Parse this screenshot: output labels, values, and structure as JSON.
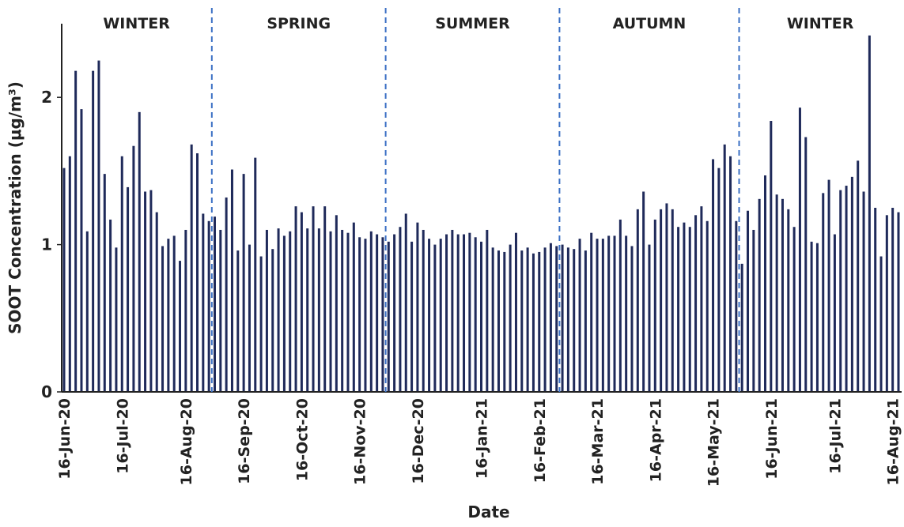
{
  "chart_data": {
    "type": "bar",
    "y_label": "SOOT Concentration (μg/m³)",
    "x_label": "Date",
    "color": "#1f2a5a",
    "ylim": [
      0,
      2.5
    ],
    "yticks": [
      0,
      1,
      2
    ],
    "seasons": [
      {
        "name": "WINTER",
        "first": 0,
        "last": 25
      },
      {
        "name": "SPRING",
        "first": 26,
        "last": 55
      },
      {
        "name": "SUMMER",
        "first": 56,
        "last": 85
      },
      {
        "name": "AUTUMN",
        "first": 86,
        "last": 116
      },
      {
        "name": "WINTER",
        "first": 117,
        "last": 144
      }
    ],
    "categories": [
      "16-Jun-20",
      null,
      null,
      null,
      null,
      null,
      null,
      null,
      null,
      null,
      "16-Jul-20",
      null,
      null,
      null,
      null,
      null,
      null,
      null,
      null,
      null,
      null,
      "16-Aug-20",
      null,
      null,
      null,
      null,
      null,
      null,
      null,
      null,
      null,
      "16-Sep-20",
      null,
      null,
      null,
      null,
      null,
      null,
      null,
      null,
      null,
      "16-Oct-20",
      null,
      null,
      null,
      null,
      null,
      null,
      null,
      null,
      null,
      "16-Nov-20",
      null,
      null,
      null,
      null,
      null,
      null,
      null,
      null,
      null,
      "16-Dec-20",
      null,
      null,
      null,
      null,
      null,
      null,
      null,
      null,
      null,
      null,
      "16-Jan-21",
      null,
      null,
      null,
      null,
      null,
      null,
      null,
      null,
      null,
      "16-Feb-21",
      null,
      null,
      null,
      null,
      null,
      null,
      null,
      null,
      null,
      "16-Mar-21",
      null,
      null,
      null,
      null,
      null,
      null,
      null,
      null,
      null,
      "16-Apr-21",
      null,
      null,
      null,
      null,
      null,
      null,
      null,
      null,
      null,
      "16-May-21",
      null,
      null,
      null,
      null,
      null,
      null,
      null,
      null,
      null,
      "16-Jun-21",
      null,
      null,
      null,
      null,
      null,
      null,
      null,
      null,
      null,
      null,
      "16-Jul-21",
      null,
      null,
      null,
      null,
      null,
      null,
      null,
      null,
      null,
      "16-Aug-21",
      null
    ],
    "values": [
      1.52,
      1.6,
      2.18,
      1.92,
      1.09,
      2.18,
      2.25,
      1.48,
      1.17,
      0.98,
      1.6,
      1.39,
      1.67,
      1.9,
      1.36,
      1.37,
      1.22,
      0.99,
      1.04,
      1.06,
      0.89,
      1.1,
      1.68,
      1.62,
      1.21,
      1.16,
      1.19,
      1.1,
      1.32,
      1.51,
      0.96,
      1.48,
      1.0,
      1.59,
      0.92,
      1.1,
      0.97,
      1.11,
      1.06,
      1.09,
      1.26,
      1.22,
      1.11,
      1.26,
      1.11,
      1.26,
      1.09,
      1.2,
      1.1,
      1.08,
      1.15,
      1.05,
      1.04,
      1.09,
      1.07,
      1.05,
      1.02,
      1.07,
      1.12,
      1.21,
      1.02,
      1.15,
      1.1,
      1.04,
      1.0,
      1.04,
      1.07,
      1.1,
      1.07,
      1.07,
      1.08,
      1.05,
      1.02,
      1.1,
      0.98,
      0.96,
      0.95,
      1.0,
      1.08,
      0.96,
      0.98,
      0.94,
      0.95,
      0.98,
      1.01,
      0.99,
      1.0,
      0.98,
      0.97,
      1.04,
      0.96,
      1.08,
      1.04,
      1.04,
      1.06,
      1.06,
      1.17,
      1.06,
      0.99,
      1.24,
      1.36,
      1.0,
      1.17,
      1.24,
      1.28,
      1.24,
      1.12,
      1.15,
      1.12,
      1.2,
      1.26,
      1.16,
      1.58,
      1.52,
      1.68,
      1.6,
      1.16,
      0.87,
      1.23,
      1.1,
      1.31,
      1.47,
      1.84,
      1.34,
      1.31,
      1.24,
      1.12,
      1.93,
      1.73,
      1.02,
      1.01,
      1.35,
      1.44,
      1.07,
      1.37,
      1.4,
      1.46,
      1.57,
      1.36,
      2.42,
      1.25,
      0.92,
      1.2,
      1.25,
      1.22
    ]
  }
}
